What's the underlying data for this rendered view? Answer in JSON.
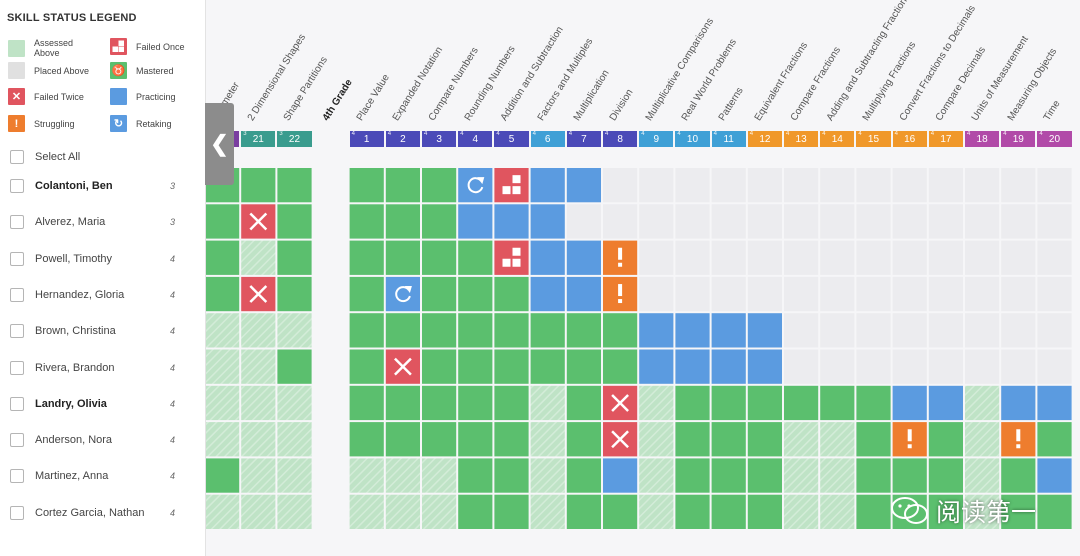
{
  "legend": {
    "title": "SKILL STATUS LEGEND",
    "items": [
      {
        "label": "Assessed Above",
        "status": "assessed",
        "icon": ""
      },
      {
        "label": "Failed Once",
        "status": "failed-once",
        "icon": "grid-icon"
      },
      {
        "label": "Placed Above",
        "status": "placed",
        "icon": ""
      },
      {
        "label": "Mastered",
        "status": "mastered",
        "icon": "trophy-icon"
      },
      {
        "label": "Failed Twice",
        "status": "failed-twice",
        "icon": "x-icon"
      },
      {
        "label": "Practicing",
        "status": "practicing",
        "icon": ""
      },
      {
        "label": "Struggling",
        "status": "struggling",
        "icon": "exclamation-icon"
      },
      {
        "label": "Retaking",
        "status": "retaking",
        "icon": "retake-icon"
      }
    ]
  },
  "colors": {
    "mastered": "#5bbf6e",
    "assessed": "#bfe3c6",
    "placed": "#e0e0e0",
    "failed_once": "#e0555f",
    "failed_twice": "#e0555f",
    "practicing": "#5b9be0",
    "struggling": "#ee7d2e",
    "retaking": "#5b9be0",
    "empty": "#ececef",
    "grade2": "#3a9c8e",
    "grade3": "#7a3ea0",
    "grade4": "#4b4ab8",
    "grade4b": "#3fa0d6",
    "grade5": "#f0982a",
    "grade6": "#b14aa8"
  },
  "select_all_label": "Select All",
  "students": [
    {
      "name": "Colantoni, Ben",
      "grade": "3",
      "bold": true
    },
    {
      "name": "Alverez, Maria",
      "grade": "3",
      "bold": false
    },
    {
      "name": "Powell, Timothy",
      "grade": "4",
      "bold": false
    },
    {
      "name": "Hernandez, Gloria",
      "grade": "4",
      "bold": false
    },
    {
      "name": "Brown, Christina",
      "grade": "4",
      "bold": false
    },
    {
      "name": "Rivera, Brandon",
      "grade": "4",
      "bold": false
    },
    {
      "name": "Landry, Olivia",
      "grade": "4",
      "bold": true
    },
    {
      "name": "Anderson, Nora",
      "grade": "4",
      "bold": false
    },
    {
      "name": "Martinez, Anna",
      "grade": "4",
      "bold": false
    },
    {
      "name": "Cortez Garcia, Nathan",
      "grade": "4",
      "bold": false
    }
  ],
  "grade_header_label": "4th Grade",
  "skills": [
    {
      "label": "Perimeter",
      "num": "",
      "grade": "3",
      "group": "grade3"
    },
    {
      "label": "2 Dimensional Shapes",
      "num": "21",
      "grade": "3",
      "group": "grade2"
    },
    {
      "label": "Shape Partitions",
      "num": "22",
      "grade": "3",
      "group": "grade2"
    },
    {
      "label": "Place Value",
      "num": "1",
      "grade": "4",
      "group": "grade4"
    },
    {
      "label": "Expanded Notation",
      "num": "2",
      "grade": "4",
      "group": "grade4"
    },
    {
      "label": "Compare Numbers",
      "num": "3",
      "grade": "4",
      "group": "grade4"
    },
    {
      "label": "Rounding Numbers",
      "num": "4",
      "grade": "4",
      "group": "grade4"
    },
    {
      "label": "Addition and Subtraction",
      "num": "5",
      "grade": "4",
      "group": "grade4"
    },
    {
      "label": "Factors and Multiples",
      "num": "6",
      "grade": "4",
      "group": "grade4b"
    },
    {
      "label": "Multiplication",
      "num": "7",
      "grade": "4",
      "group": "grade4"
    },
    {
      "label": "Division",
      "num": "8",
      "grade": "4",
      "group": "grade4"
    },
    {
      "label": "Multiplicative Comparisons",
      "num": "9",
      "grade": "4",
      "group": "grade4b"
    },
    {
      "label": "Real World Problems",
      "num": "10",
      "grade": "4",
      "group": "grade4b"
    },
    {
      "label": "Patterns",
      "num": "11",
      "grade": "4",
      "group": "grade4b"
    },
    {
      "label": "Equivalent Fractions",
      "num": "12",
      "grade": "4",
      "group": "grade5"
    },
    {
      "label": "Compare Fractions",
      "num": "13",
      "grade": "4",
      "group": "grade5"
    },
    {
      "label": "Adding and Subtracting Fractions",
      "num": "14",
      "grade": "4",
      "group": "grade5"
    },
    {
      "label": "Multiplying Fractions",
      "num": "15",
      "grade": "4",
      "group": "grade5"
    },
    {
      "label": "Convert Fractions to Decimals",
      "num": "16",
      "grade": "4",
      "group": "grade5"
    },
    {
      "label": "Compare Decimals",
      "num": "17",
      "grade": "4",
      "group": "grade5"
    },
    {
      "label": "Units of Measurement",
      "num": "18",
      "grade": "4",
      "group": "grade6"
    },
    {
      "label": "Measuring Objects",
      "num": "19",
      "grade": "4",
      "group": "grade6"
    },
    {
      "label": "Time",
      "num": "20",
      "grade": "4",
      "group": "grade6"
    }
  ],
  "grid": [
    [
      "M",
      "M",
      "M",
      "",
      "M",
      "M",
      "M",
      "R",
      "F1",
      "P",
      "P",
      "",
      "",
      "",
      "",
      "",
      "",
      "",
      "",
      "",
      "",
      "",
      "",
      ""
    ],
    [
      "M",
      "F2",
      "M",
      "",
      "M",
      "M",
      "M",
      "P",
      "P",
      "P",
      "",
      "",
      "",
      "",
      "",
      "",
      "",
      "",
      "",
      "",
      "",
      "",
      "",
      ""
    ],
    [
      "M",
      "A",
      "M",
      "",
      "M",
      "M",
      "M",
      "M",
      "F1",
      "P",
      "P",
      "S",
      "",
      "",
      "",
      "",
      "",
      "",
      "",
      "",
      "",
      "",
      "",
      ""
    ],
    [
      "M",
      "F2",
      "M",
      "",
      "M",
      "R",
      "M",
      "M",
      "M",
      "P",
      "P",
      "S",
      "",
      "",
      "",
      "",
      "",
      "",
      "",
      "",
      "",
      "",
      "",
      ""
    ],
    [
      "A",
      "A",
      "A",
      "",
      "M",
      "M",
      "M",
      "M",
      "M",
      "M",
      "M",
      "M",
      "P",
      "P",
      "P",
      "P",
      "",
      "",
      "",
      "",
      "",
      "",
      "",
      ""
    ],
    [
      "A",
      "A",
      "M",
      "",
      "M",
      "F2",
      "M",
      "M",
      "M",
      "M",
      "M",
      "M",
      "P",
      "P",
      "P",
      "P",
      "",
      "",
      "",
      "",
      "",
      "",
      "",
      ""
    ],
    [
      "A",
      "A",
      "A",
      "",
      "M",
      "M",
      "M",
      "M",
      "M",
      "A",
      "M",
      "F2",
      "A",
      "M",
      "M",
      "M",
      "M",
      "M",
      "M",
      "P",
      "P",
      "A",
      "P",
      "P"
    ],
    [
      "A",
      "A",
      "A",
      "",
      "M",
      "M",
      "M",
      "M",
      "M",
      "A",
      "M",
      "F2",
      "A",
      "M",
      "M",
      "M",
      "A",
      "A",
      "M",
      "S",
      "M",
      "A",
      "S",
      "M"
    ],
    [
      "M",
      "A",
      "A",
      "",
      "A",
      "A",
      "A",
      "M",
      "M",
      "A",
      "M",
      "P",
      "A",
      "M",
      "M",
      "M",
      "A",
      "A",
      "M",
      "M",
      "M",
      "A",
      "M",
      "P"
    ],
    [
      "A",
      "A",
      "A",
      "",
      "A",
      "A",
      "A",
      "M",
      "M",
      "A",
      "M",
      "M",
      "A",
      "M",
      "M",
      "M",
      "A",
      "A",
      "M",
      "M",
      "M",
      "A",
      "M",
      "M"
    ]
  ],
  "watermark_text": "阅读第一"
}
